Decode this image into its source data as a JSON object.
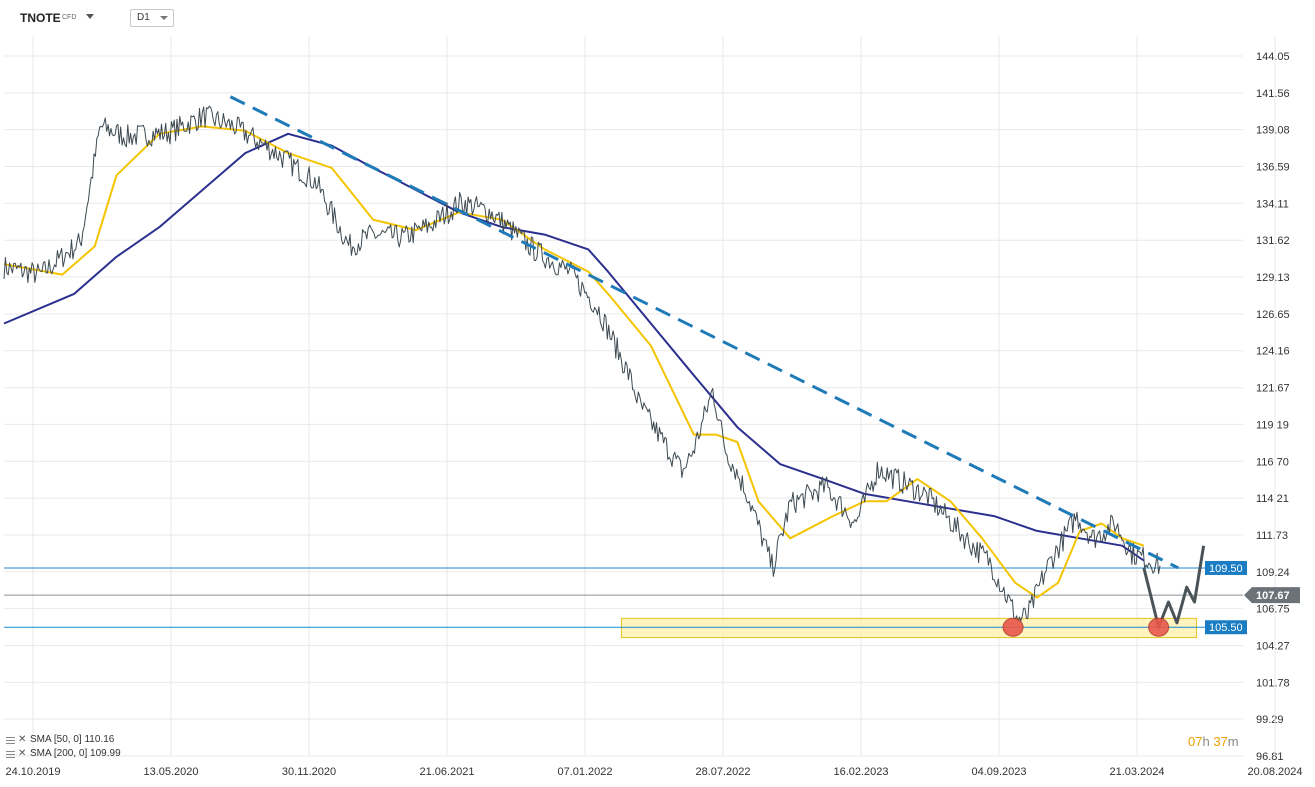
{
  "toolbar": {
    "symbol": "TNOTE",
    "symbol_tag": "CFD",
    "timeframe": "D1"
  },
  "indicators": [
    {
      "label": "SMA [50, 0]",
      "value": "110.16",
      "color": "#f5c400"
    },
    {
      "label": "SMA [200, 0]",
      "value": "109.99",
      "color": "#2b2f8f"
    }
  ],
  "countdown": {
    "hours": "07",
    "hours_unit": "h",
    "minutes": "37",
    "minutes_unit": "m"
  },
  "colors": {
    "price": "#3d4a52",
    "sma50": "#f5c400",
    "sma200": "#2b2f8f",
    "trendline": "#1f7ab8",
    "level_line": "#1f8ad0",
    "label_bg": "#1a7dc4",
    "current_bg": "#6b7379",
    "zone_fill": "#fff2b3",
    "zone_stroke": "#e0b800",
    "marker": "#e8584a",
    "projection": "#4a5358",
    "grid": "#e9e9e9",
    "axis_text": "#333333"
  },
  "chart_data": {
    "type": "line",
    "title": "",
    "xlabel": "",
    "ylabel": "",
    "x_range": [
      "2019-10-24",
      "2024-08-20"
    ],
    "ylim": [
      96.81,
      144.05
    ],
    "grid": true,
    "legend": "bottom-left",
    "y_ticks": [
      "144.05",
      "141.56",
      "139.08",
      "136.59",
      "134.11",
      "131.62",
      "129.13",
      "126.65",
      "124.16",
      "121.67",
      "119.19",
      "116.70",
      "114.21",
      "111.73",
      "109.24",
      "106.75",
      "104.27",
      "101.78",
      "99.29",
      "96.81"
    ],
    "x_ticks": [
      "24.10.2019",
      "13.05.2020",
      "30.11.2020",
      "21.06.2021",
      "07.01.2022",
      "28.07.2022",
      "16.02.2023",
      "04.09.2023",
      "21.03.2024",
      "20.08.2024"
    ],
    "series": [
      {
        "name": "",
        "role": "price",
        "x": [
          "2019-10-24",
          "2019-12-15",
          "2020-02-10",
          "2020-03-09",
          "2020-04-15",
          "2020-06-15",
          "2020-08-04",
          "2020-09-15",
          "2020-11-15",
          "2021-01-10",
          "2021-02-26",
          "2021-03-31",
          "2021-05-15",
          "2021-06-21",
          "2021-08-04",
          "2021-09-15",
          "2021-11-15",
          "2022-01-07",
          "2022-02-15",
          "2022-03-31",
          "2022-04-15",
          "2022-06-15",
          "2022-07-01",
          "2022-07-28",
          "2022-08-15",
          "2022-09-15",
          "2022-10-21",
          "2022-11-15",
          "2023-01-05",
          "2023-02-16",
          "2023-03-20",
          "2023-04-15",
          "2023-05-25",
          "2023-06-15",
          "2023-08-01",
          "2023-08-25",
          "2023-10-05",
          "2023-10-19",
          "2023-11-15",
          "2023-12-27",
          "2024-01-20",
          "2024-02-20",
          "2024-03-15",
          "2024-04-10",
          "2024-04-25"
        ],
        "y": [
          129.8,
          129.3,
          131.5,
          139.3,
          138.6,
          138.9,
          140.0,
          139.3,
          137.5,
          135.5,
          131.2,
          132.0,
          131.8,
          132.6,
          134.2,
          133.5,
          131.0,
          129.4,
          127.0,
          122.5,
          120.5,
          116.0,
          117.5,
          121.5,
          117.5,
          114.5,
          109.5,
          113.8,
          115.0,
          112.5,
          116.2,
          115.5,
          114.5,
          113.5,
          111.0,
          110.0,
          106.0,
          106.3,
          109.5,
          113.0,
          111.5,
          112.5,
          110.5,
          110.0,
          109.6
        ]
      },
      {
        "name": "SMA [50, 0]",
        "role": "sma50",
        "x": [
          "2019-10-24",
          "2020-01-15",
          "2020-03-01",
          "2020-04-01",
          "2020-06-01",
          "2020-08-01",
          "2020-10-01",
          "2020-12-01",
          "2021-02-01",
          "2021-04-01",
          "2021-06-01",
          "2021-08-01",
          "2021-10-01",
          "2021-12-01",
          "2022-02-01",
          "2022-03-01",
          "2022-05-01",
          "2022-07-01",
          "2022-08-01",
          "2022-09-01",
          "2022-10-01",
          "2022-11-15",
          "2023-01-15",
          "2023-03-01",
          "2023-04-01",
          "2023-05-15",
          "2023-07-01",
          "2023-08-15",
          "2023-10-01",
          "2023-11-01",
          "2023-12-01",
          "2024-01-01",
          "2024-02-01",
          "2024-03-01",
          "2024-04-01"
        ],
        "y": [
          130.0,
          129.3,
          131.2,
          136.0,
          138.8,
          139.3,
          139.0,
          137.5,
          136.5,
          133.0,
          132.3,
          133.5,
          133.0,
          131.0,
          129.5,
          128.0,
          124.5,
          118.5,
          118.5,
          118.0,
          114.0,
          111.5,
          113.0,
          114.0,
          114.0,
          115.5,
          114.0,
          111.5,
          108.5,
          107.5,
          108.5,
          112.0,
          112.5,
          111.5,
          111.0
        ]
      },
      {
        "name": "SMA [200, 0]",
        "role": "sma200",
        "x": [
          "2019-10-24",
          "2020-02-01",
          "2020-04-01",
          "2020-06-01",
          "2020-08-01",
          "2020-10-01",
          "2020-12-01",
          "2021-02-01",
          "2021-04-01",
          "2021-06-01",
          "2021-08-01",
          "2021-10-01",
          "2021-12-01",
          "2022-02-01",
          "2022-03-01",
          "2022-05-01",
          "2022-07-01",
          "2022-09-01",
          "2022-11-01",
          "2023-01-01",
          "2023-03-01",
          "2023-05-01",
          "2023-07-01",
          "2023-09-01",
          "2023-11-01",
          "2024-01-01",
          "2024-03-01",
          "2024-04-01"
        ],
        "y": [
          126.0,
          128.0,
          130.5,
          132.5,
          135.0,
          137.5,
          138.8,
          138.0,
          136.5,
          135.0,
          133.5,
          132.5,
          132.0,
          131.0,
          129.5,
          126.0,
          122.5,
          119.0,
          116.5,
          115.5,
          114.5,
          114.0,
          113.5,
          113.0,
          112.0,
          111.5,
          111.0,
          110.0
        ]
      }
    ],
    "trendline": {
      "x": [
        "2020-09-10",
        "2024-05-20"
      ],
      "y": [
        141.3,
        109.5
      ]
    },
    "horizontal_levels": [
      {
        "value": "109.50",
        "y": 109.5,
        "role": "level"
      },
      {
        "value": "107.67",
        "y": 107.67,
        "role": "current"
      },
      {
        "value": "105.50",
        "y": 105.5,
        "role": "level"
      }
    ],
    "support_zone": {
      "x": [
        "2022-03-20",
        "2024-06-15"
      ],
      "y": [
        104.8,
        106.1
      ]
    },
    "markers": [
      {
        "x": "2023-09-28",
        "y": 105.5
      },
      {
        "x": "2024-04-22",
        "y": 105.5
      }
    ],
    "projection": {
      "x": [
        "2024-04-01",
        "2024-04-22",
        "2024-05-06",
        "2024-05-18",
        "2024-06-01",
        "2024-06-12",
        "2024-06-25"
      ],
      "y": [
        109.5,
        105.5,
        107.2,
        105.8,
        108.2,
        107.2,
        111.0
      ]
    }
  }
}
